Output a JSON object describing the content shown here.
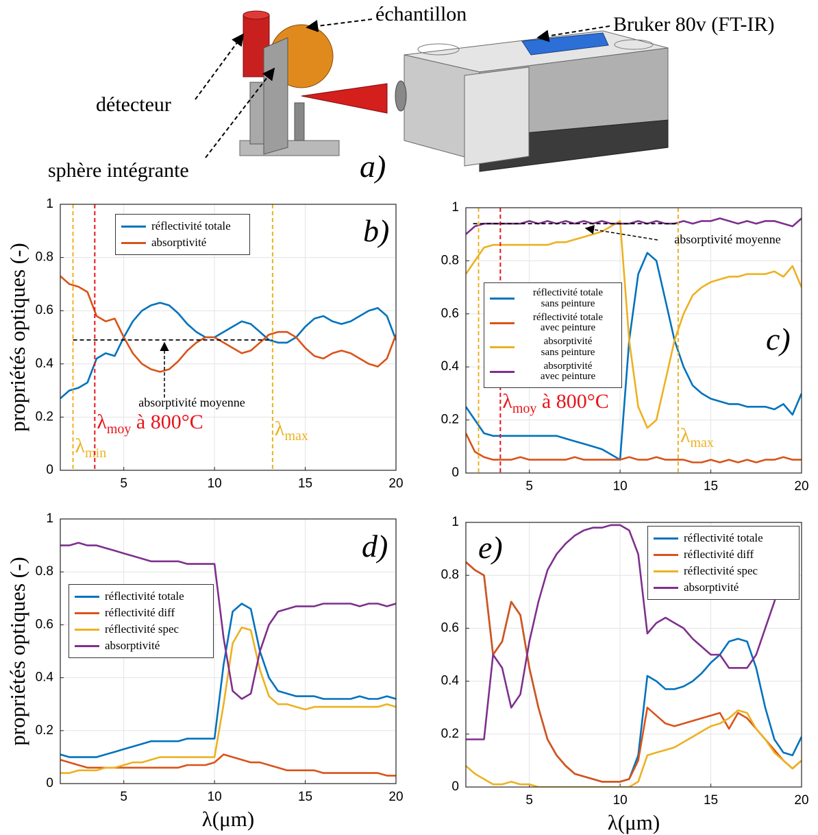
{
  "illustration": {
    "labels": [
      "échantillon",
      "Bruker 80v (FT-IR)",
      "détecteur",
      "sphère intégrante"
    ],
    "panel_label": "a)"
  },
  "chart_data": [
    {
      "type": "line",
      "panel_label": "b)",
      "ylabel": "propriétés optiques (-)",
      "x": [
        1.5,
        2,
        2.5,
        3,
        3.5,
        4,
        4.5,
        5,
        5.5,
        6,
        6.5,
        7,
        7.5,
        8,
        8.5,
        9,
        9.5,
        10,
        10.5,
        11,
        11.5,
        12,
        12.5,
        13,
        13.5,
        14,
        14.5,
        15,
        15.5,
        16,
        16.5,
        17,
        17.5,
        18,
        18.5,
        19,
        19.5,
        20
      ],
      "xlim": [
        1.5,
        20
      ],
      "ylim": [
        0,
        1
      ],
      "xticks": [
        5,
        10,
        15,
        20
      ],
      "yticks": [
        0,
        0.2,
        0.4,
        0.6,
        0.8,
        1
      ],
      "grid": true,
      "series": [
        {
          "name": "réflectivité totale",
          "color": "#0072BD",
          "values": [
            0.27,
            0.3,
            0.31,
            0.33,
            0.42,
            0.44,
            0.43,
            0.5,
            0.56,
            0.6,
            0.62,
            0.63,
            0.62,
            0.59,
            0.55,
            0.52,
            0.5,
            0.5,
            0.52,
            0.54,
            0.56,
            0.55,
            0.52,
            0.49,
            0.48,
            0.48,
            0.5,
            0.54,
            0.57,
            0.58,
            0.56,
            0.55,
            0.56,
            0.58,
            0.6,
            0.61,
            0.58,
            0.49
          ]
        },
        {
          "name": "absorptivité",
          "color": "#D95319",
          "values": [
            0.73,
            0.7,
            0.69,
            0.67,
            0.58,
            0.56,
            0.57,
            0.5,
            0.44,
            0.4,
            0.38,
            0.37,
            0.38,
            0.41,
            0.45,
            0.48,
            0.5,
            0.5,
            0.48,
            0.46,
            0.44,
            0.45,
            0.48,
            0.51,
            0.52,
            0.52,
            0.5,
            0.46,
            0.43,
            0.42,
            0.44,
            0.45,
            0.44,
            0.42,
            0.4,
            0.39,
            0.42,
            0.51
          ]
        }
      ],
      "vlines": [
        {
          "x": 2.2,
          "color": "#EDB120",
          "label": "λ",
          "sub": "min"
        },
        {
          "x": 3.4,
          "color": "#E8141B",
          "label": "λ",
          "sub": "moy",
          "suffix": " à 800°C"
        },
        {
          "x": 13.2,
          "color": "#EDB120",
          "label": "λ",
          "sub": "max"
        }
      ],
      "hline": {
        "y": 0.49,
        "x": [
          2.2,
          13.2
        ]
      },
      "annotations": [
        "absorptivité moyenne"
      ]
    },
    {
      "type": "line",
      "panel_label": "c)",
      "x": [
        1.5,
        2,
        2.5,
        3,
        3.5,
        4,
        4.5,
        5,
        5.5,
        6,
        6.5,
        7,
        7.5,
        8,
        8.5,
        9,
        9.5,
        10,
        10.5,
        11,
        11.5,
        12,
        12.5,
        13,
        13.5,
        14,
        14.5,
        15,
        15.5,
        16,
        16.5,
        17,
        17.5,
        18,
        18.5,
        19,
        19.5,
        20
      ],
      "xlim": [
        1.5,
        20
      ],
      "ylim": [
        0,
        1
      ],
      "xticks": [
        5,
        10,
        15,
        20
      ],
      "yticks": [
        0,
        0.2,
        0.4,
        0.6,
        0.8,
        1
      ],
      "grid": true,
      "series": [
        {
          "name": "réflectivité totale\nsans peinture",
          "color": "#0072BD",
          "values": [
            0.25,
            0.2,
            0.15,
            0.14,
            0.14,
            0.14,
            0.14,
            0.14,
            0.14,
            0.14,
            0.14,
            0.13,
            0.12,
            0.11,
            0.1,
            0.09,
            0.07,
            0.05,
            0.5,
            0.75,
            0.83,
            0.8,
            0.65,
            0.5,
            0.4,
            0.33,
            0.3,
            0.28,
            0.27,
            0.26,
            0.26,
            0.25,
            0.25,
            0.25,
            0.24,
            0.26,
            0.22,
            0.3
          ]
        },
        {
          "name": "réflectivité totale\navec peinture",
          "color": "#D95319",
          "values": [
            0.15,
            0.08,
            0.06,
            0.05,
            0.05,
            0.05,
            0.06,
            0.05,
            0.05,
            0.05,
            0.05,
            0.05,
            0.06,
            0.05,
            0.05,
            0.05,
            0.05,
            0.05,
            0.06,
            0.05,
            0.05,
            0.06,
            0.05,
            0.05,
            0.05,
            0.04,
            0.04,
            0.05,
            0.04,
            0.05,
            0.04,
            0.05,
            0.04,
            0.05,
            0.05,
            0.06,
            0.05,
            0.05
          ]
        },
        {
          "name": "absorptivité\nsans peinture",
          "color": "#EDB120",
          "values": [
            0.75,
            0.8,
            0.85,
            0.86,
            0.86,
            0.86,
            0.86,
            0.86,
            0.86,
            0.86,
            0.87,
            0.87,
            0.88,
            0.89,
            0.9,
            0.91,
            0.93,
            0.95,
            0.5,
            0.25,
            0.17,
            0.2,
            0.35,
            0.5,
            0.6,
            0.67,
            0.7,
            0.72,
            0.73,
            0.74,
            0.74,
            0.75,
            0.75,
            0.75,
            0.76,
            0.74,
            0.78,
            0.7
          ]
        },
        {
          "name": "absorptivité\navec peinture",
          "color": "#7E2F8E",
          "values": [
            0.9,
            0.93,
            0.94,
            0.94,
            0.94,
            0.94,
            0.94,
            0.95,
            0.94,
            0.95,
            0.94,
            0.95,
            0.94,
            0.95,
            0.94,
            0.95,
            0.94,
            0.94,
            0.94,
            0.95,
            0.94,
            0.95,
            0.94,
            0.94,
            0.95,
            0.94,
            0.95,
            0.95,
            0.96,
            0.95,
            0.94,
            0.95,
            0.94,
            0.95,
            0.95,
            0.94,
            0.93,
            0.96
          ]
        }
      ],
      "vlines": [
        {
          "x": 2.2,
          "color": "#EDB120"
        },
        {
          "x": 3.4,
          "color": "#E8141B",
          "label": "λ",
          "sub": "moy",
          "suffix": " à 800°C"
        },
        {
          "x": 13.2,
          "color": "#EDB120",
          "label": "λ",
          "sub": "max"
        }
      ],
      "hline": {
        "y": 0.94,
        "x": [
          1.9,
          13.2
        ]
      },
      "annotations": [
        "absorptivité moyenne"
      ]
    },
    {
      "type": "line",
      "panel_label": "d)",
      "ylabel": "propriétés optiques (-)",
      "xlabel": "λ(μm)",
      "x": [
        1.5,
        2,
        2.5,
        3,
        3.5,
        4,
        4.5,
        5,
        5.5,
        6,
        6.5,
        7,
        7.5,
        8,
        8.5,
        9,
        9.5,
        10,
        10.5,
        11,
        11.5,
        12,
        12.5,
        13,
        13.5,
        14,
        14.5,
        15,
        15.5,
        16,
        16.5,
        17,
        17.5,
        18,
        18.5,
        19,
        19.5,
        20
      ],
      "xlim": [
        1.5,
        20
      ],
      "ylim": [
        0,
        1
      ],
      "xticks": [
        5,
        10,
        15,
        20
      ],
      "yticks": [
        0,
        0.2,
        0.4,
        0.6,
        0.8,
        1
      ],
      "grid": true,
      "series": [
        {
          "name": "réflectivité totale",
          "color": "#0072BD",
          "values": [
            0.11,
            0.1,
            0.1,
            0.1,
            0.1,
            0.11,
            0.12,
            0.13,
            0.14,
            0.15,
            0.16,
            0.16,
            0.16,
            0.16,
            0.17,
            0.17,
            0.17,
            0.17,
            0.45,
            0.65,
            0.68,
            0.66,
            0.5,
            0.4,
            0.35,
            0.34,
            0.33,
            0.33,
            0.33,
            0.32,
            0.32,
            0.32,
            0.32,
            0.33,
            0.32,
            0.32,
            0.33,
            0.32
          ]
        },
        {
          "name": "réflectivité diff",
          "color": "#D95319",
          "values": [
            0.09,
            0.08,
            0.07,
            0.06,
            0.06,
            0.06,
            0.06,
            0.06,
            0.06,
            0.06,
            0.06,
            0.06,
            0.06,
            0.06,
            0.07,
            0.07,
            0.07,
            0.08,
            0.11,
            0.1,
            0.09,
            0.08,
            0.08,
            0.07,
            0.06,
            0.05,
            0.05,
            0.05,
            0.05,
            0.04,
            0.04,
            0.04,
            0.04,
            0.04,
            0.04,
            0.04,
            0.03,
            0.03
          ]
        },
        {
          "name": "réflectivité spec",
          "color": "#EDB120",
          "values": [
            0.04,
            0.04,
            0.05,
            0.05,
            0.05,
            0.06,
            0.06,
            0.07,
            0.08,
            0.08,
            0.09,
            0.1,
            0.1,
            0.1,
            0.1,
            0.1,
            0.1,
            0.1,
            0.3,
            0.53,
            0.59,
            0.58,
            0.43,
            0.33,
            0.3,
            0.3,
            0.29,
            0.28,
            0.29,
            0.29,
            0.29,
            0.29,
            0.29,
            0.29,
            0.29,
            0.29,
            0.3,
            0.29
          ]
        },
        {
          "name": "absorptivité",
          "color": "#7E2F8E",
          "values": [
            0.9,
            0.9,
            0.91,
            0.9,
            0.9,
            0.89,
            0.88,
            0.87,
            0.86,
            0.85,
            0.84,
            0.84,
            0.84,
            0.84,
            0.83,
            0.83,
            0.83,
            0.83,
            0.55,
            0.35,
            0.32,
            0.34,
            0.5,
            0.6,
            0.65,
            0.66,
            0.67,
            0.67,
            0.67,
            0.68,
            0.68,
            0.68,
            0.68,
            0.67,
            0.68,
            0.68,
            0.67,
            0.68
          ]
        }
      ]
    },
    {
      "type": "line",
      "panel_label": "e)",
      "xlabel": "λ(μm)",
      "x": [
        1.5,
        2,
        2.5,
        3,
        3.5,
        4,
        4.5,
        5,
        5.5,
        6,
        6.5,
        7,
        7.5,
        8,
        8.5,
        9,
        9.5,
        10,
        10.5,
        11,
        11.5,
        12,
        12.5,
        13,
        13.5,
        14,
        14.5,
        15,
        15.5,
        16,
        16.5,
        17,
        17.5,
        18,
        18.5,
        19,
        19.5,
        20
      ],
      "xlim": [
        1.5,
        20
      ],
      "ylim": [
        0,
        1
      ],
      "xticks": [
        5,
        10,
        15,
        20
      ],
      "yticks": [
        0,
        0.2,
        0.4,
        0.6,
        0.8,
        1
      ],
      "grid": true,
      "series": [
        {
          "name": "réflectivité totale",
          "color": "#0072BD",
          "values": [
            0.85,
            0.82,
            0.8,
            0.5,
            0.55,
            0.7,
            0.65,
            0.45,
            0.3,
            0.18,
            0.12,
            0.08,
            0.05,
            0.04,
            0.03,
            0.02,
            0.02,
            0.02,
            0.03,
            0.12,
            0.42,
            0.4,
            0.37,
            0.37,
            0.38,
            0.4,
            0.43,
            0.47,
            0.5,
            0.55,
            0.56,
            0.55,
            0.45,
            0.3,
            0.18,
            0.13,
            0.12,
            0.19
          ]
        },
        {
          "name": "réflectivité diff",
          "color": "#D95319",
          "values": [
            0.85,
            0.82,
            0.8,
            0.5,
            0.55,
            0.7,
            0.65,
            0.45,
            0.3,
            0.18,
            0.12,
            0.08,
            0.05,
            0.04,
            0.03,
            0.02,
            0.02,
            0.02,
            0.03,
            0.1,
            0.3,
            0.27,
            0.24,
            0.23,
            0.24,
            0.25,
            0.26,
            0.27,
            0.28,
            0.22,
            0.28,
            0.26,
            0.22,
            0.18,
            0.14,
            0.1,
            0.07,
            0.1
          ]
        },
        {
          "name": "réflectivité spec",
          "color": "#EDB120",
          "values": [
            0.08,
            0.05,
            0.03,
            0.01,
            0.01,
            0.02,
            0.01,
            0.01,
            0,
            0,
            0,
            0,
            0,
            0,
            0,
            0,
            0,
            0,
            0,
            0.02,
            0.12,
            0.13,
            0.14,
            0.15,
            0.17,
            0.19,
            0.21,
            0.23,
            0.24,
            0.26,
            0.29,
            0.28,
            0.22,
            0.18,
            0.13,
            0.1,
            0.07,
            0.1
          ]
        },
        {
          "name": "absorptivité",
          "color": "#7E2F8E",
          "values": [
            0.18,
            0.18,
            0.18,
            0.5,
            0.45,
            0.3,
            0.35,
            0.55,
            0.7,
            0.82,
            0.88,
            0.92,
            0.95,
            0.97,
            0.98,
            0.98,
            0.99,
            0.99,
            0.97,
            0.88,
            0.58,
            0.62,
            0.64,
            0.62,
            0.6,
            0.56,
            0.53,
            0.5,
            0.5,
            0.45,
            0.45,
            0.45,
            0.5,
            0.6,
            0.7,
            0.82,
            null,
            null
          ]
        }
      ]
    }
  ]
}
